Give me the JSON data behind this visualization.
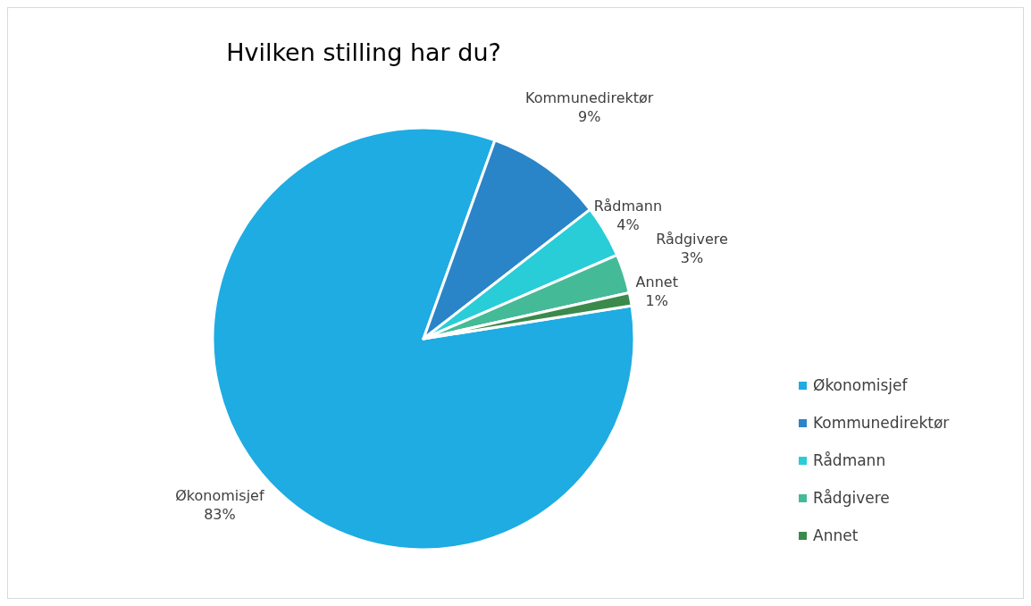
{
  "chart_data": {
    "type": "pie",
    "title": "Hvilken stilling har du?",
    "categories": [
      "Økonomisjef",
      "Kommunedirektør",
      "Rådmann",
      "Rådgivere",
      "Annet"
    ],
    "values": [
      83,
      9,
      4,
      3,
      1
    ],
    "colors": [
      "#1eace2",
      "#2a84c8",
      "#28cdd8",
      "#45ba97",
      "#3b8a4c"
    ],
    "value_labels": [
      "83%",
      "9%",
      "4%",
      "3%",
      "1%"
    ],
    "legend": "right"
  }
}
